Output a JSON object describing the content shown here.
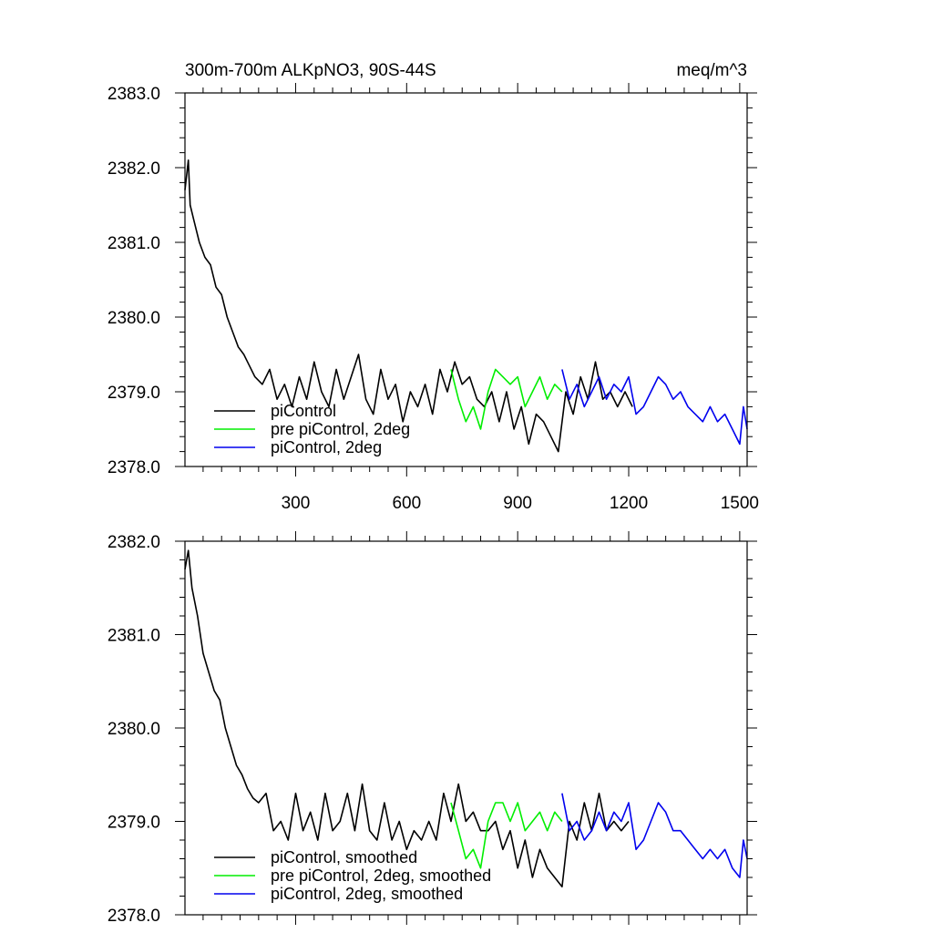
{
  "chart_data": [
    {
      "type": "line",
      "title": "300m-700m ALKpNO3, 90S-44S",
      "units": "meq/m^3",
      "xlim": [
        1,
        1520
      ],
      "ylim": [
        2378.0,
        2383.0
      ],
      "x_ticks": [
        300,
        600,
        900,
        1200,
        1500
      ],
      "x_tick_labels": [
        "300",
        "600",
        "900",
        "1200",
        "1500"
      ],
      "y_ticks": [
        2378.0,
        2379.0,
        2380.0,
        2381.0,
        2382.0,
        2383.0
      ],
      "y_tick_labels": [
        "2378.0",
        "2379.0",
        "2380.0",
        "2381.0",
        "2382.0",
        "2383.0"
      ],
      "legend_position": "bottom-left",
      "series": [
        {
          "name": "piControl",
          "color": "#000000",
          "x": [
            1,
            10,
            15,
            25,
            40,
            55,
            70,
            85,
            100,
            115,
            130,
            145,
            160,
            175,
            190,
            210,
            230,
            250,
            270,
            290,
            310,
            330,
            350,
            370,
            390,
            410,
            430,
            450,
            470,
            490,
            510,
            530,
            550,
            570,
            590,
            610,
            630,
            650,
            670,
            690,
            710,
            730,
            750,
            770,
            790,
            810,
            830,
            850,
            870,
            890,
            910,
            930,
            950,
            970,
            990,
            1010,
            1030,
            1050,
            1070,
            1090,
            1110,
            1130,
            1150,
            1170,
            1190,
            1210
          ],
          "y": [
            2381.7,
            2382.1,
            2381.5,
            2381.3,
            2381.0,
            2380.8,
            2380.7,
            2380.4,
            2380.3,
            2380.0,
            2379.8,
            2379.6,
            2379.5,
            2379.35,
            2379.2,
            2379.1,
            2379.3,
            2378.9,
            2379.1,
            2378.8,
            2379.2,
            2378.9,
            2379.4,
            2379.0,
            2378.8,
            2379.3,
            2378.9,
            2379.2,
            2379.5,
            2378.9,
            2378.7,
            2379.3,
            2378.9,
            2379.1,
            2378.6,
            2379.0,
            2378.8,
            2379.1,
            2378.7,
            2379.3,
            2379.0,
            2379.4,
            2379.1,
            2379.2,
            2378.9,
            2378.8,
            2379.0,
            2378.6,
            2379.0,
            2378.5,
            2378.8,
            2378.3,
            2378.7,
            2378.6,
            2378.4,
            2378.2,
            2379.0,
            2378.7,
            2379.2,
            2378.9,
            2379.4,
            2378.9,
            2379.0,
            2378.8,
            2379.0,
            2378.8
          ]
        },
        {
          "name": "pre piControl, 2deg",
          "color": "#00ee00",
          "x": [
            720,
            740,
            760,
            780,
            800,
            820,
            840,
            860,
            880,
            900,
            920,
            940,
            960,
            980,
            1000,
            1020
          ],
          "y": [
            2379.3,
            2378.9,
            2378.6,
            2378.8,
            2378.5,
            2379.0,
            2379.3,
            2379.2,
            2379.1,
            2379.2,
            2378.8,
            2379.0,
            2379.2,
            2378.9,
            2379.1,
            2379.0
          ]
        },
        {
          "name": "piControl, 2deg",
          "color": "#0000ee",
          "x": [
            1020,
            1040,
            1060,
            1080,
            1100,
            1120,
            1140,
            1160,
            1180,
            1200,
            1220,
            1240,
            1260,
            1280,
            1300,
            1320,
            1340,
            1360,
            1380,
            1400,
            1420,
            1440,
            1460,
            1480,
            1500,
            1510,
            1520
          ],
          "y": [
            2379.3,
            2378.9,
            2379.1,
            2378.8,
            2379.0,
            2379.2,
            2378.9,
            2379.1,
            2379.0,
            2379.2,
            2378.7,
            2378.8,
            2379.0,
            2379.2,
            2379.1,
            2378.9,
            2379.0,
            2378.8,
            2378.7,
            2378.6,
            2378.8,
            2378.6,
            2378.7,
            2378.5,
            2378.3,
            2378.8,
            2378.5
          ]
        }
      ]
    },
    {
      "type": "line",
      "xlim": [
        1,
        1520
      ],
      "ylim": [
        2378.0,
        2382.0
      ],
      "x_ticks": [
        300,
        600,
        900,
        1200,
        1500
      ],
      "y_ticks": [
        2378.0,
        2379.0,
        2380.0,
        2381.0,
        2382.0
      ],
      "y_tick_labels": [
        "2378.0",
        "2379.0",
        "2380.0",
        "2381.0",
        "2382.0"
      ],
      "legend_position": "bottom-left",
      "series": [
        {
          "name": "piControl, smoothed",
          "color": "#000000",
          "x": [
            1,
            10,
            20,
            35,
            50,
            65,
            80,
            95,
            110,
            125,
            140,
            155,
            170,
            185,
            200,
            220,
            240,
            260,
            280,
            300,
            320,
            340,
            360,
            380,
            400,
            420,
            440,
            460,
            480,
            500,
            520,
            540,
            560,
            580,
            600,
            620,
            640,
            660,
            680,
            700,
            720,
            740,
            760,
            780,
            800,
            820,
            840,
            860,
            880,
            900,
            920,
            940,
            960,
            980,
            1000,
            1020,
            1040,
            1060,
            1080,
            1100,
            1120,
            1140,
            1160,
            1180,
            1200
          ],
          "y": [
            2381.7,
            2381.9,
            2381.5,
            2381.2,
            2380.8,
            2380.6,
            2380.4,
            2380.3,
            2380.0,
            2379.8,
            2379.6,
            2379.5,
            2379.35,
            2379.25,
            2379.2,
            2379.3,
            2378.9,
            2379.0,
            2378.8,
            2379.3,
            2378.9,
            2379.1,
            2378.8,
            2379.3,
            2378.9,
            2379.0,
            2379.3,
            2378.9,
            2379.4,
            2378.9,
            2378.8,
            2379.2,
            2378.8,
            2379.0,
            2378.7,
            2378.9,
            2378.8,
            2379.0,
            2378.8,
            2379.3,
            2379.0,
            2379.4,
            2379.0,
            2379.1,
            2378.9,
            2378.9,
            2379.0,
            2378.7,
            2378.9,
            2378.5,
            2378.8,
            2378.4,
            2378.7,
            2378.5,
            2378.4,
            2378.3,
            2379.0,
            2378.8,
            2379.2,
            2378.9,
            2379.3,
            2378.9,
            2379.0,
            2378.9,
            2379.0
          ]
        },
        {
          "name": "pre piControl, 2deg, smoothed",
          "color": "#00ee00",
          "x": [
            720,
            740,
            760,
            780,
            800,
            820,
            840,
            860,
            880,
            900,
            920,
            940,
            960,
            980,
            1000,
            1020
          ],
          "y": [
            2379.2,
            2378.9,
            2378.6,
            2378.7,
            2378.5,
            2379.0,
            2379.2,
            2379.2,
            2379.0,
            2379.2,
            2378.9,
            2379.0,
            2379.1,
            2378.9,
            2379.1,
            2379.0
          ]
        },
        {
          "name": "piControl, 2deg, smoothed",
          "color": "#0000ee",
          "x": [
            1020,
            1040,
            1060,
            1080,
            1100,
            1120,
            1140,
            1160,
            1180,
            1200,
            1220,
            1240,
            1260,
            1280,
            1300,
            1320,
            1340,
            1360,
            1380,
            1400,
            1420,
            1440,
            1460,
            1480,
            1500,
            1510,
            1520
          ],
          "y": [
            2379.3,
            2378.9,
            2379.0,
            2378.8,
            2378.9,
            2379.1,
            2378.9,
            2379.1,
            2379.0,
            2379.2,
            2378.7,
            2378.8,
            2379.0,
            2379.2,
            2379.1,
            2378.9,
            2378.9,
            2378.8,
            2378.7,
            2378.6,
            2378.7,
            2378.6,
            2378.7,
            2378.5,
            2378.4,
            2378.8,
            2378.6
          ]
        }
      ]
    }
  ]
}
